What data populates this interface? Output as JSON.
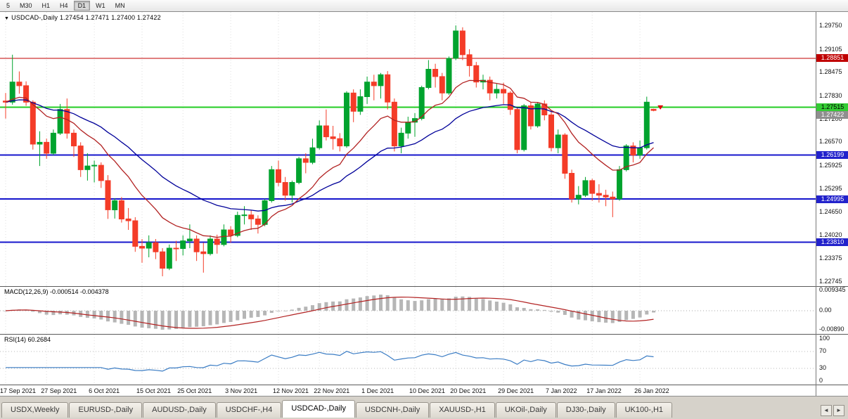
{
  "toolbar": {
    "timeframes": [
      {
        "label": "5",
        "active": false
      },
      {
        "label": "M30",
        "active": false
      },
      {
        "label": "H1",
        "active": false
      },
      {
        "label": "H4",
        "active": false
      },
      {
        "label": "D1",
        "active": true
      },
      {
        "label": "W1",
        "active": false
      },
      {
        "label": "MN",
        "active": false
      }
    ]
  },
  "main_chart": {
    "dropdown_icon": "▼",
    "title": "USDCAD-,Daily 1.27454 1.27471 1.27400 1.27422"
  },
  "chart_data": {
    "type": "candlestick",
    "symbol": "USDCAD-,Daily",
    "ohlc": {
      "open": 1.27454,
      "high": 1.27471,
      "low": 1.274,
      "close": 1.27422
    },
    "price_range": [
      1.2261,
      1.3012
    ],
    "up_color": "#00a32e",
    "down_color": "#f43c28",
    "price_axis_labels": [
      "1.29750",
      "1.29105",
      "1.28475",
      "1.27830",
      "1.27200",
      "1.26570",
      "1.25925",
      "1.25295",
      "1.24650",
      "1.24020",
      "1.23375",
      "1.22745"
    ],
    "hlines": [
      {
        "price": 1.28851,
        "label": "1.28851",
        "color": "#c00000",
        "width": 1,
        "tag_bg": "#c00000",
        "tag_fg": "#ffffff"
      },
      {
        "price": 1.27515,
        "label": "1.27515",
        "color": "#22cc22",
        "width": 2,
        "tag_bg": "#33cc33",
        "tag_fg": "#000000"
      },
      {
        "price": 1.26199,
        "label": "1.26199",
        "color": "#1515cc",
        "width": 2,
        "tag_bg": "#2222cc",
        "tag_fg": "#ffffff"
      },
      {
        "price": 1.24995,
        "label": "1.24995",
        "color": "#1515cc",
        "width": 2,
        "tag_bg": "#2222cc",
        "tag_fg": "#ffffff"
      },
      {
        "price": 1.2381,
        "label": "1.23810",
        "color": "#1515cc",
        "width": 2,
        "tag_bg": "#2222cc",
        "tag_fg": "#ffffff"
      }
    ],
    "current_price": {
      "value": 1.27422,
      "label": "1.27422",
      "tag_bg": "#8f8f8f",
      "tag_fg": "#ffffff"
    },
    "marker": {
      "name": "sell-arrow",
      "price": 1.2756,
      "bar": 96,
      "color": "#e00000"
    },
    "overlays": {
      "ma_fast": {
        "type": "ema",
        "period": 13,
        "color": "#b22222"
      },
      "ma_slow": {
        "type": "ema",
        "period": 30,
        "color": "#000099"
      }
    },
    "candles": [
      [
        1.2768,
        1.279,
        1.272,
        1.2765
      ],
      [
        1.2765,
        1.2895,
        1.2758,
        1.282
      ],
      [
        1.282,
        1.2849,
        1.2788,
        1.281
      ],
      [
        1.281,
        1.2822,
        1.2755,
        1.2765
      ],
      [
        1.2765,
        1.277,
        1.2635,
        1.265
      ],
      [
        1.265,
        1.2685,
        1.259,
        1.2655
      ],
      [
        1.2655,
        1.2665,
        1.261,
        1.2625
      ],
      [
        1.2625,
        1.269,
        1.262,
        1.268
      ],
      [
        1.268,
        1.276,
        1.2675,
        1.2745
      ],
      [
        1.2745,
        1.2775,
        1.2665,
        1.268
      ],
      [
        1.268,
        1.269,
        1.2615,
        1.2645
      ],
      [
        1.2645,
        1.2655,
        1.256,
        1.258
      ],
      [
        1.258,
        1.2625,
        1.255,
        1.259
      ],
      [
        1.259,
        1.2605,
        1.2545,
        1.2592
      ],
      [
        1.2592,
        1.26,
        1.253,
        1.255
      ],
      [
        1.255,
        1.2565,
        1.2445,
        1.247
      ],
      [
        1.247,
        1.2502,
        1.2446,
        1.2495
      ],
      [
        1.2495,
        1.2505,
        1.2435,
        1.2445
      ],
      [
        1.2445,
        1.2475,
        1.2415,
        1.244
      ],
      [
        1.244,
        1.245,
        1.2355,
        1.237
      ],
      [
        1.237,
        1.239,
        1.2325,
        1.2365
      ],
      [
        1.2365,
        1.24,
        1.234,
        1.238
      ],
      [
        1.238,
        1.239,
        1.2335,
        1.2355
      ],
      [
        1.2355,
        1.2365,
        1.2288,
        1.231
      ],
      [
        1.231,
        1.2375,
        1.2305,
        1.2365
      ],
      [
        1.2365,
        1.2385,
        1.233,
        1.2364
      ],
      [
        1.2364,
        1.24,
        1.2345,
        1.2385
      ],
      [
        1.2385,
        1.243,
        1.2365,
        1.239
      ],
      [
        1.239,
        1.24,
        1.233,
        1.2355
      ],
      [
        1.2355,
        1.238,
        1.2298,
        1.235
      ],
      [
        1.235,
        1.24,
        1.2345,
        1.239
      ],
      [
        1.239,
        1.2402,
        1.235,
        1.2375
      ],
      [
        1.2375,
        1.243,
        1.237,
        1.2415
      ],
      [
        1.2415,
        1.2425,
        1.238,
        1.24
      ],
      [
        1.24,
        1.2465,
        1.2395,
        1.2455
      ],
      [
        1.2455,
        1.248,
        1.243,
        1.2456
      ],
      [
        1.2456,
        1.247,
        1.2415,
        1.2445
      ],
      [
        1.2445,
        1.2455,
        1.2405,
        1.243
      ],
      [
        1.243,
        1.25,
        1.2425,
        1.2495
      ],
      [
        1.2495,
        1.259,
        1.249,
        1.258
      ],
      [
        1.258,
        1.2605,
        1.2535,
        1.2545
      ],
      [
        1.2545,
        1.256,
        1.2495,
        1.251
      ],
      [
        1.251,
        1.255,
        1.249,
        1.2545
      ],
      [
        1.2545,
        1.2615,
        1.254,
        1.261
      ],
      [
        1.261,
        1.2625,
        1.257,
        1.26
      ],
      [
        1.26,
        1.2665,
        1.2595,
        1.264
      ],
      [
        1.264,
        1.2715,
        1.2635,
        1.27
      ],
      [
        1.27,
        1.2745,
        1.266,
        1.267
      ],
      [
        1.267,
        1.27,
        1.2635,
        1.2665
      ],
      [
        1.2665,
        1.268,
        1.263,
        1.2645
      ],
      [
        1.2645,
        1.2795,
        1.264,
        1.279
      ],
      [
        1.279,
        1.28,
        1.271,
        1.274
      ],
      [
        1.274,
        1.28,
        1.273,
        1.278
      ],
      [
        1.278,
        1.2835,
        1.276,
        1.282
      ],
      [
        1.282,
        1.284,
        1.277,
        1.281
      ],
      [
        1.281,
        1.2845,
        1.2775,
        1.284
      ],
      [
        1.284,
        1.285,
        1.2745,
        1.2765
      ],
      [
        1.2765,
        1.2775,
        1.263,
        1.2645
      ],
      [
        1.2645,
        1.2695,
        1.2625,
        1.268
      ],
      [
        1.268,
        1.2725,
        1.2665,
        1.271
      ],
      [
        1.271,
        1.2735,
        1.267,
        1.272
      ],
      [
        1.272,
        1.281,
        1.2715,
        1.2805
      ],
      [
        1.2805,
        1.288,
        1.28,
        1.2855
      ],
      [
        1.2855,
        1.287,
        1.2805,
        1.2835
      ],
      [
        1.2835,
        1.2845,
        1.277,
        1.279
      ],
      [
        1.279,
        1.289,
        1.2785,
        1.2885
      ],
      [
        1.2885,
        1.2975,
        1.288,
        1.296
      ],
      [
        1.296,
        1.297,
        1.288,
        1.2895
      ],
      [
        1.2895,
        1.291,
        1.2835,
        1.2865
      ],
      [
        1.2865,
        1.2875,
        1.2805,
        1.282
      ],
      [
        1.282,
        1.284,
        1.28,
        1.2825
      ],
      [
        1.2825,
        1.2835,
        1.277,
        1.279
      ],
      [
        1.279,
        1.2815,
        1.2775,
        1.28
      ],
      [
        1.28,
        1.2818,
        1.276,
        1.279
      ],
      [
        1.279,
        1.2795,
        1.273,
        1.2745
      ],
      [
        1.2745,
        1.275,
        1.2625,
        1.2635
      ],
      [
        1.2635,
        1.276,
        1.263,
        1.2755
      ],
      [
        1.2755,
        1.2765,
        1.269,
        1.27
      ],
      [
        1.27,
        1.2765,
        1.2695,
        1.276
      ],
      [
        1.276,
        1.277,
        1.2715,
        1.273
      ],
      [
        1.273,
        1.274,
        1.263,
        1.264
      ],
      [
        1.264,
        1.269,
        1.2625,
        1.2675
      ],
      [
        1.2675,
        1.268,
        1.2555,
        1.257
      ],
      [
        1.257,
        1.258,
        1.249,
        1.25
      ],
      [
        1.25,
        1.2535,
        1.2485,
        1.251
      ],
      [
        1.251,
        1.256,
        1.2505,
        1.255
      ],
      [
        1.255,
        1.2555,
        1.2495,
        1.2515
      ],
      [
        1.2515,
        1.254,
        1.249,
        1.251
      ],
      [
        1.251,
        1.2525,
        1.248,
        1.2505
      ],
      [
        1.2505,
        1.252,
        1.245,
        1.25
      ],
      [
        1.25,
        1.259,
        1.2495,
        1.258
      ],
      [
        1.258,
        1.265,
        1.2575,
        1.2645
      ],
      [
        1.2645,
        1.2655,
        1.26,
        1.262
      ],
      [
        1.262,
        1.266,
        1.261,
        1.264
      ],
      [
        1.264,
        1.278,
        1.2635,
        1.2765
      ],
      [
        1.27454,
        1.27471,
        1.274,
        1.27422
      ]
    ],
    "date_labels": [
      {
        "text": "17 Sep 2021",
        "bar": 0
      },
      {
        "text": "27 Sep 2021",
        "bar": 6
      },
      {
        "text": "6 Oct 2021",
        "bar": 13
      },
      {
        "text": "15 Oct 2021",
        "bar": 20
      },
      {
        "text": "25 Oct 2021",
        "bar": 26
      },
      {
        "text": "3 Nov 2021",
        "bar": 33
      },
      {
        "text": "12 Nov 2021",
        "bar": 40
      },
      {
        "text": "22 Nov 2021",
        "bar": 46
      },
      {
        "text": "1 Dec 2021",
        "bar": 53
      },
      {
        "text": "10 Dec 2021",
        "bar": 60
      },
      {
        "text": "20 Dec 2021",
        "bar": 66
      },
      {
        "text": "29 Dec 2021",
        "bar": 73
      },
      {
        "text": "7 Jan 2022",
        "bar": 80
      },
      {
        "text": "17 Jan 2022",
        "bar": 86
      },
      {
        "text": "26 Jan 2022",
        "bar": 93
      }
    ],
    "indicators": [
      {
        "name": "MACD",
        "label": "MACD(12,26,9) -0.000514 -0.004378",
        "params": [
          12,
          26,
          9
        ],
        "values_shown": [
          -0.000514,
          -0.004378
        ],
        "axis_labels": [
          "0.009345",
          "0.00",
          "-0.00890"
        ],
        "histogram_color": "#b6b6b6",
        "signal_color": "#b22222"
      },
      {
        "name": "RSI",
        "label": "RSI(14) 60.2684",
        "period": 14,
        "value_shown": 60.2684,
        "axis_labels": [
          "100",
          "70",
          "30",
          "0"
        ],
        "levels": [
          70,
          30
        ],
        "line_color": "#3a7cc4"
      }
    ]
  },
  "bottom_tabs": {
    "tabs": [
      {
        "label": "USDX,Weekly",
        "active": false
      },
      {
        "label": "EURUSD-,Daily",
        "active": false
      },
      {
        "label": "AUDUSD-,Daily",
        "active": false
      },
      {
        "label": "USDCHF-,H4",
        "active": false
      },
      {
        "label": "USDCAD-,Daily",
        "active": true
      },
      {
        "label": "USDCNH-,Daily",
        "active": false
      },
      {
        "label": "XAUUSD-,H1",
        "active": false
      },
      {
        "label": "UKOil-,Daily",
        "active": false
      },
      {
        "label": "DJ30-,Daily",
        "active": false
      },
      {
        "label": "UK100-,H1",
        "active": false
      }
    ],
    "scroll_left_icon": "◄",
    "scroll_right_icon": "►"
  }
}
